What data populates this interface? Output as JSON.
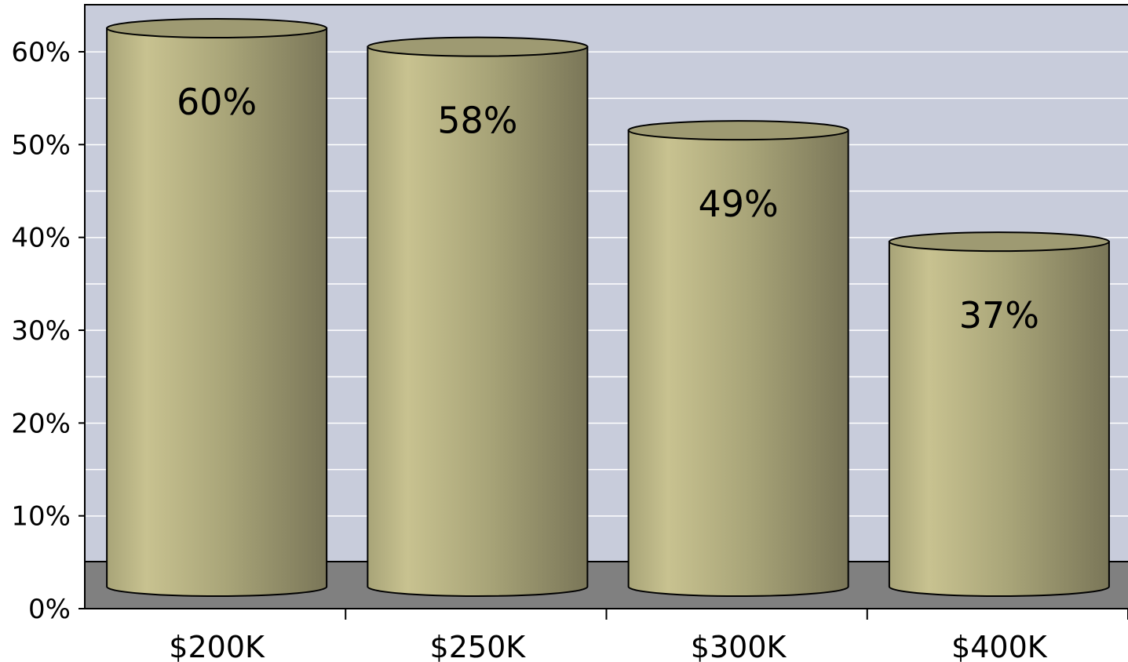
{
  "chart_data": {
    "type": "bar",
    "style": "3d-cylinder",
    "categories": [
      "$200K",
      "$250K",
      "$300K",
      "$400K"
    ],
    "values": [
      60,
      58,
      49,
      37
    ],
    "value_labels": [
      "60%",
      "58%",
      "49%",
      "37%"
    ],
    "ylim": [
      0,
      60
    ],
    "yticks": [
      0,
      10,
      20,
      30,
      40,
      50,
      60
    ],
    "ytick_labels": [
      "0%",
      "10%",
      "20%",
      "30%",
      "40%",
      "50%",
      "60%"
    ],
    "title": "",
    "xlabel": "",
    "ylabel": "",
    "grid": true,
    "legend": "none",
    "colors": {
      "plot_background": "#c8ccdb",
      "floor": "#808080",
      "gridline": "#ffffff",
      "bar_light": "#c8c290",
      "bar_mid": "#a8a478",
      "bar_dark": "#7a7658",
      "bar_top": "#9e9a72"
    }
  }
}
